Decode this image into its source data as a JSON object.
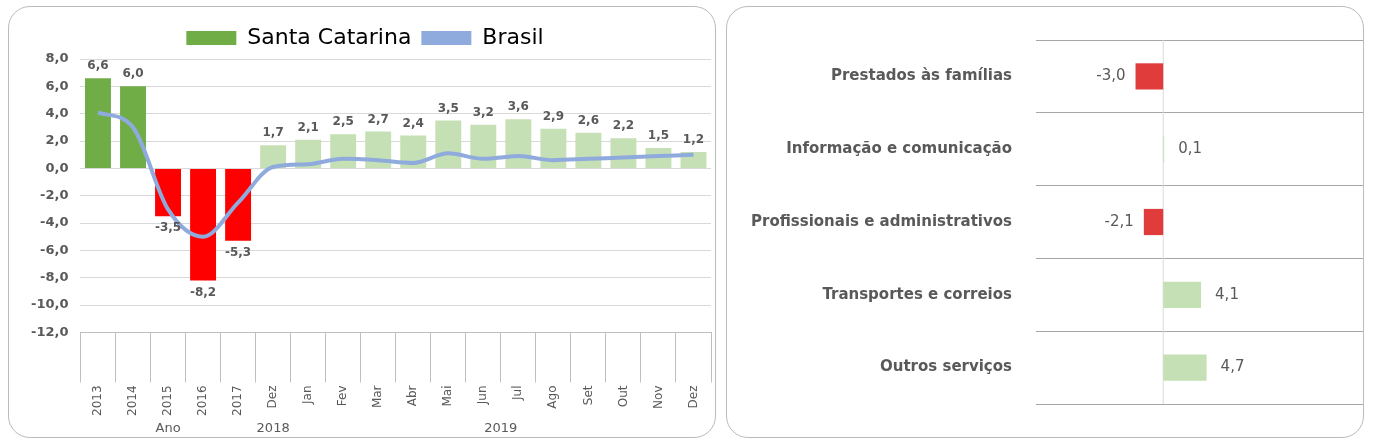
{
  "chart_data": [
    {
      "type": "bar",
      "categories": [
        "2013",
        "2014",
        "2015",
        "2016",
        "2017",
        "Dez",
        "Jan",
        "Fev",
        "Mar",
        "Abr",
        "Mai",
        "Jun",
        "Jul",
        "Ago",
        "Set",
        "Out",
        "Nov",
        "Dez"
      ],
      "series": [
        {
          "name": "Santa Catarina",
          "type": "bar",
          "color": "#70ad47",
          "colors": [
            "#70ad47",
            "#70ad47",
            "#ff0000",
            "#ff0000",
            "#ff0000",
            "#c5e0b4",
            "#c5e0b4",
            "#c5e0b4",
            "#c5e0b4",
            "#c5e0b4",
            "#c5e0b4",
            "#c5e0b4",
            "#c5e0b4",
            "#c5e0b4",
            "#c5e0b4",
            "#c5e0b4",
            "#c5e0b4",
            "#c5e0b4"
          ],
          "values": [
            6.6,
            6.0,
            -3.5,
            -8.2,
            -5.3,
            1.7,
            2.1,
            2.5,
            2.7,
            2.4,
            3.5,
            3.2,
            3.6,
            2.9,
            2.6,
            2.2,
            1.5,
            1.2
          ],
          "value_labels": [
            "6,6",
            "6,0",
            "-3,5",
            "-8,2",
            "-5,3",
            "1,7",
            "2,1",
            "2,5",
            "2,7",
            "2,4",
            "3,5",
            "3,2",
            "3,6",
            "2,9",
            "2,6",
            "2,2",
            "1,5",
            "1,2"
          ]
        },
        {
          "name": "Brasil",
          "type": "line",
          "color": "#8faadc",
          "values": [
            4.1,
            3.0,
            -3.0,
            -5.0,
            -2.5,
            0.1,
            0.3,
            0.7,
            0.6,
            0.4,
            1.1,
            0.7,
            0.9,
            0.6,
            0.7,
            0.8,
            0.9,
            1.0
          ]
        }
      ],
      "ylim": [
        -12,
        8
      ],
      "yticks": [
        {
          "value": -12,
          "label": "-12,0"
        },
        {
          "value": -10,
          "label": "-10,0"
        },
        {
          "value": -8,
          "label": "-8,0"
        },
        {
          "value": -6,
          "label": "-6,0"
        },
        {
          "value": -4,
          "label": "-4,0"
        },
        {
          "value": -2,
          "label": "-2,0"
        },
        {
          "value": 0,
          "label": "0,0"
        },
        {
          "value": 2,
          "label": "2,0"
        },
        {
          "value": 4,
          "label": "4,0"
        },
        {
          "value": 6,
          "label": "6,0"
        },
        {
          "value": 8,
          "label": "8,0"
        }
      ],
      "annotations": [
        "Ano",
        "2018",
        "2019"
      ],
      "grid": "y",
      "legend": "top",
      "marker": "none"
    },
    {
      "type": "bar",
      "orientation": "horizontal",
      "categories": [
        "Prestados às famílias",
        "Informação e comunicação",
        "Profissionais e administrativos",
        "Transportes e correios",
        "Outros serviços"
      ],
      "values": [
        -3.0,
        0.1,
        -2.1,
        4.1,
        4.7
      ],
      "colors": [
        "#e03c3c",
        "#c5e0b4",
        "#e03c3c",
        "#c5e0b4",
        "#c5e0b4"
      ],
      "value_labels": [
        "-3,0",
        "0,1",
        "-2,1",
        "4,1",
        "4,7"
      ],
      "grid": "y",
      "tick_labels": "y"
    }
  ]
}
